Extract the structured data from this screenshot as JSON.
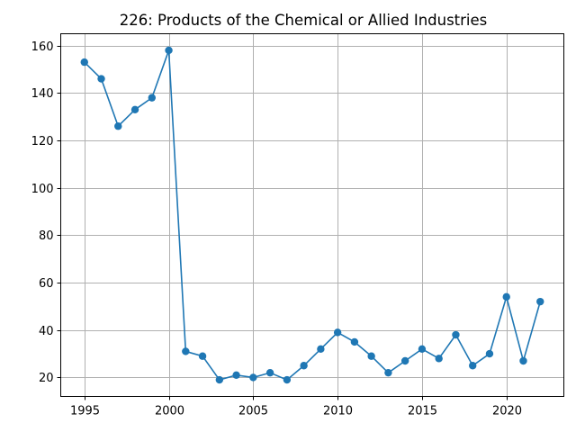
{
  "chart_data": {
    "type": "line",
    "title": "226: Products of the Chemical or Allied Industries",
    "xlabel": "",
    "ylabel": "",
    "xlim": [
      1993.6,
      2023.4
    ],
    "ylim": [
      12.0,
      165.0
    ],
    "xticks": [
      1995,
      2000,
      2005,
      2010,
      2015,
      2020
    ],
    "yticks": [
      20,
      40,
      60,
      80,
      100,
      120,
      140,
      160
    ],
    "grid": true,
    "legend": "none",
    "color": "#1f77b4",
    "marker": "circle",
    "series": [
      {
        "x": [
          1995,
          1996,
          1997,
          1998,
          1999,
          2000,
          2001,
          2002,
          2003,
          2004,
          2005,
          2006,
          2007,
          2008,
          2009,
          2010,
          2011,
          2012,
          2013,
          2014,
          2015,
          2016,
          2017,
          2018,
          2019,
          2020,
          2021,
          2022
        ],
        "values": [
          153,
          146,
          126,
          133,
          138,
          158,
          31,
          29,
          19,
          21,
          20,
          22,
          19,
          25,
          32,
          39,
          35,
          29,
          22,
          27,
          32,
          28,
          38,
          25,
          30,
          54,
          27,
          52
        ]
      }
    ]
  }
}
